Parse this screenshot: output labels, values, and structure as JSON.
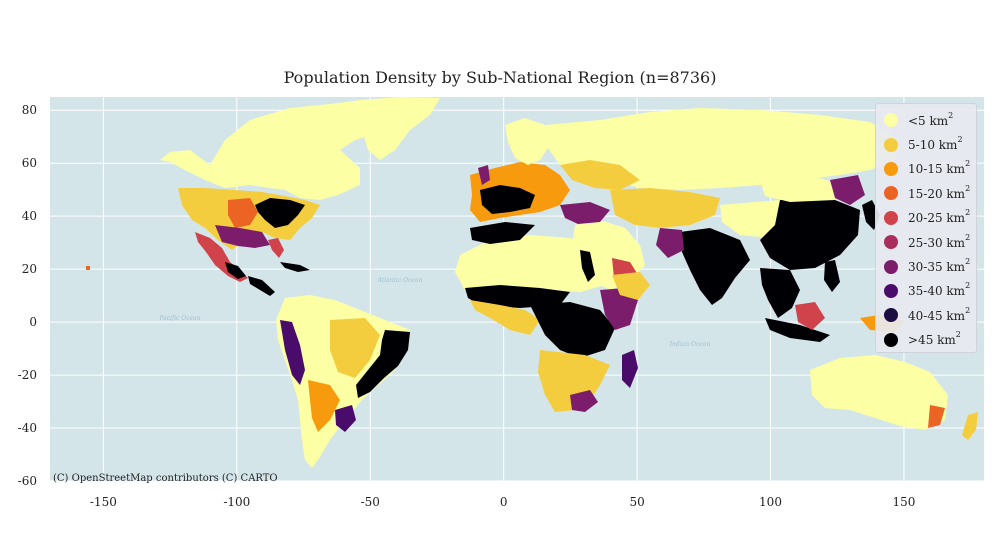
{
  "title": "Population Density by Sub-National Region (n=8736)",
  "attribution": "(C) OpenStreetMap contributors (C) CARTO",
  "map": {
    "type": "choropleth",
    "projection": "equirectangular",
    "xlim": [
      -170,
      180
    ],
    "ylim": [
      -60,
      85
    ],
    "x_ticks": [
      -150,
      -100,
      -50,
      0,
      50,
      100,
      150
    ],
    "y_ticks": [
      80,
      60,
      40,
      20,
      0,
      -20,
      -40,
      -60
    ],
    "grid": true,
    "legend_position": "top-right",
    "basemap_labels": [
      "Atlantic Ocean",
      "Pacific Ocean",
      "Indian Ocean"
    ],
    "colors": {
      "ocean": "#d4e5ea",
      "grid": "#ffffff",
      "legend_bg": "#e8eaf0"
    }
  },
  "legend": [
    {
      "label": "<5 km",
      "sup": "2",
      "color": "#fcffa4"
    },
    {
      "label": "5-10 km",
      "sup": "2",
      "color": "#f4cd3f"
    },
    {
      "label": "10-15 km",
      "sup": "2",
      "color": "#f89a0d"
    },
    {
      "label": "15-20 km",
      "sup": "2",
      "color": "#ec6423"
    },
    {
      "label": "20-25 km",
      "sup": "2",
      "color": "#d0434a"
    },
    {
      "label": "25-30 km",
      "sup": "2",
      "color": "#a92e5e"
    },
    {
      "label": "30-35 km",
      "sup": "2",
      "color": "#7c1d6c"
    },
    {
      "label": "35-40 km",
      "sup": "2",
      "color": "#4a0c6b"
    },
    {
      "label": "40-45 km",
      "sup": "2",
      "color": "#1b0c41"
    },
    {
      "label": ">45 km",
      "sup": "2",
      "color": "#000004"
    }
  ]
}
